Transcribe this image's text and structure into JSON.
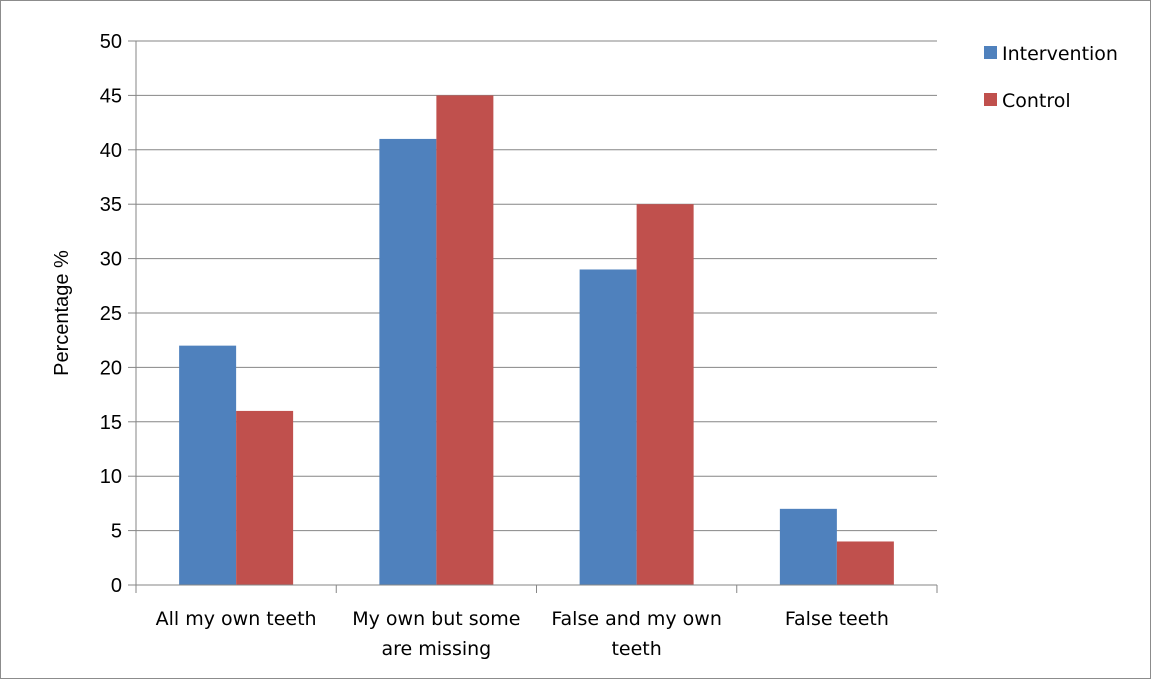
{
  "chart_data": {
    "type": "bar",
    "title": "",
    "xlabel": "",
    "ylabel": "Percentage %",
    "ylim": [
      0,
      50
    ],
    "ytick_step": 5,
    "grid": true,
    "legend_position": "right",
    "categories": [
      [
        "All my own teeth"
      ],
      [
        "My own but some",
        "are missing"
      ],
      [
        "False  and my own",
        "teeth"
      ],
      [
        "False teeth"
      ]
    ],
    "series": [
      {
        "name": "Intervention",
        "color": "#4f81bd",
        "values": [
          22,
          41,
          29,
          7
        ]
      },
      {
        "name": "Control",
        "color": "#c0504d",
        "values": [
          16,
          45,
          35,
          4
        ]
      }
    ]
  }
}
